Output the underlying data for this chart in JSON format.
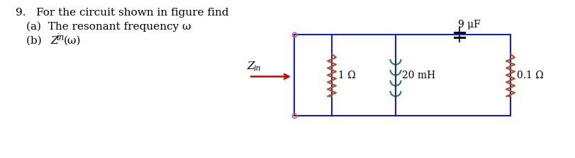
{
  "background_color": "#ffffff",
  "text_color": "#000000",
  "line1": "9.   For the circuit shown in figure find",
  "line2": "(a)  The resonant frequency ω",
  "line3_pre": "(b)  ",
  "line3_Z": "Z",
  "line3_sub": "in",
  "line3_post": "(ω)",
  "label_zin_Z": "Z",
  "label_zin_sub": "in",
  "label_1ohm": "1 Ω",
  "label_20mh": "20 mH",
  "label_01ohm": "0.1 Ω",
  "label_9uf": "9 μF",
  "wire_color": "#1a1acd",
  "resistor_color": "#b05020",
  "inductor_color": "#228822",
  "cap_color": "#000000",
  "arrow_color": "#cc0000",
  "terminal_color": "#cc6666",
  "font_size_main": 11,
  "font_size_label": 10,
  "font_size_comp": 10
}
